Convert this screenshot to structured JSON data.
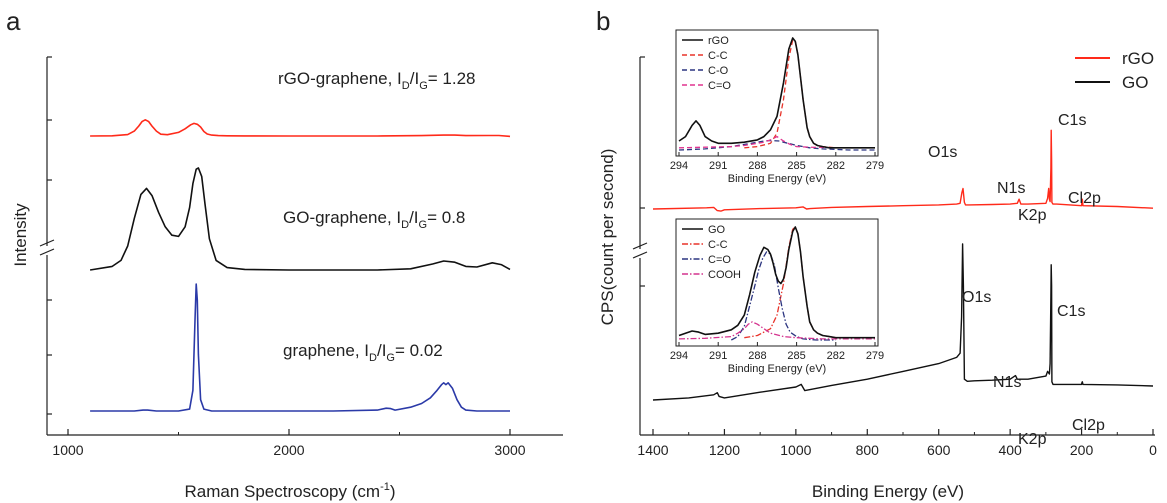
{
  "panels": {
    "a": {
      "letter": "a"
    },
    "b": {
      "letter": "b"
    }
  },
  "chart_data": [
    {
      "id": "raman",
      "type": "line",
      "title": "",
      "xlabel": "Raman Spectroscopy (cm",
      "xlabel_sup": "-1",
      "xlabel_close": ")",
      "ylabel": "Intensity",
      "xlim": [
        1000,
        3000
      ],
      "x_ticks": [
        1000,
        2000,
        3000
      ],
      "x_tick_labels": [
        "1000",
        "2000",
        "3000"
      ],
      "y_axis_break": true,
      "grid": false,
      "series": [
        {
          "name": "rGO-graphene",
          "color": "#ff2a1a",
          "annotation": {
            "prefix": "rGO-graphene, I",
            "sub1": "D",
            "mid": "/I",
            "sub2": "G",
            "suffix": "= 1.28"
          },
          "x": [
            1100,
            1200,
            1270,
            1300,
            1320,
            1335,
            1350,
            1365,
            1380,
            1400,
            1420,
            1450,
            1500,
            1530,
            1555,
            1570,
            1585,
            1600,
            1615,
            1630,
            1650,
            1680,
            1720,
            1800,
            2000,
            2200,
            2400,
            2600,
            2700,
            2750,
            2800,
            2900,
            2950,
            3000
          ],
          "y": [
            0,
            0.2,
            1.6,
            5.5,
            11,
            16,
            18,
            16,
            11,
            5.5,
            2,
            1.5,
            4,
            8,
            12.5,
            14,
            13,
            10,
            5,
            2.2,
            1,
            0.5,
            0.2,
            0.1,
            0,
            0,
            0,
            0.5,
            1,
            1,
            0.5,
            0.6,
            0.6,
            -0.5
          ]
        },
        {
          "name": "GO-graphene",
          "color": "#111111",
          "annotation": {
            "prefix": "GO-graphene, I",
            "sub1": "D",
            "mid": "/I",
            "sub2": "G",
            "suffix": "= 0.8"
          },
          "x": [
            1100,
            1200,
            1240,
            1270,
            1300,
            1330,
            1355,
            1380,
            1410,
            1440,
            1470,
            1500,
            1530,
            1550,
            1565,
            1580,
            1590,
            1605,
            1620,
            1640,
            1670,
            1720,
            1800,
            2000,
            2200,
            2400,
            2550,
            2650,
            2700,
            2750,
            2800,
            2850,
            2920,
            2960,
            3000
          ],
          "y": [
            0,
            3,
            8,
            20,
            43,
            63,
            68,
            62,
            48,
            36,
            29,
            28,
            36,
            52,
            72,
            84,
            85,
            78,
            55,
            26,
            8,
            2,
            0.5,
            0,
            0,
            0,
            1,
            5,
            7.5,
            6.5,
            3,
            2.5,
            6,
            4.5,
            0.5
          ]
        },
        {
          "name": "graphene",
          "color": "#2b3aa8",
          "annotation": {
            "prefix": "graphene, I",
            "sub1": "D",
            "mid": "/I",
            "sub2": "G",
            "suffix": "= 0.02"
          },
          "x": [
            1100,
            1300,
            1340,
            1360,
            1400,
            1500,
            1550,
            1565,
            1575,
            1580,
            1585,
            1590,
            1600,
            1615,
            1650,
            1800,
            2000,
            2200,
            2400,
            2440,
            2460,
            2480,
            2550,
            2600,
            2640,
            2670,
            2690,
            2700,
            2710,
            2720,
            2740,
            2760,
            2780,
            2800,
            2850,
            3000
          ],
          "y": [
            0,
            0,
            1,
            1,
            0,
            0,
            2,
            22,
            100,
            135,
            118,
            60,
            12,
            2,
            0,
            0,
            0,
            0,
            1,
            3,
            2.5,
            1,
            4,
            8,
            14,
            22,
            28,
            30,
            28,
            30,
            24,
            12,
            4,
            1,
            0,
            0
          ]
        }
      ]
    },
    {
      "id": "xps-survey",
      "type": "line",
      "title": "",
      "xlabel": "Binding Energy (eV)",
      "ylabel": "CPS(count per second)",
      "xlim": [
        1400,
        0
      ],
      "x_ticks": [
        1400,
        1200,
        1000,
        800,
        600,
        400,
        200,
        0
      ],
      "x_tick_labels": [
        "1400",
        "1200",
        "1000",
        "800",
        "600",
        "400",
        "200",
        "0"
      ],
      "y_axis_break": true,
      "grid": false,
      "legend": {
        "placement": "top-right",
        "entries": [
          {
            "label": "rGO",
            "color": "#ff2a1a"
          },
          {
            "label": "GO",
            "color": "#111111"
          }
        ]
      },
      "series": [
        {
          "name": "rGO",
          "color": "#ff2a1a",
          "x": [
            1400,
            1250,
            1230,
            1220,
            1210,
            1200,
            1100,
            1000,
            980,
            970,
            960,
            900,
            800,
            700,
            600,
            550,
            540,
            535,
            532,
            528,
            525,
            515,
            450,
            400,
            380,
            375,
            370,
            350,
            300,
            295,
            292,
            290,
            288,
            286,
            285,
            284,
            283,
            280,
            270,
            200,
            199,
            198,
            196,
            100,
            0
          ],
          "y": [
            0,
            1.5,
            2,
            -2,
            -2.5,
            -1,
            0.5,
            1.5,
            2.5,
            0,
            0.5,
            2,
            3,
            4,
            5,
            6,
            7,
            20,
            25,
            8,
            5,
            5,
            5.5,
            6,
            7,
            12,
            6,
            6,
            7,
            13,
            25,
            12,
            9,
            50,
            96,
            60,
            8,
            6,
            6,
            4,
            10,
            12,
            4,
            3,
            1
          ]
        },
        {
          "name": "GO",
          "color": "#111111",
          "x": [
            1400,
            1300,
            1230,
            1220,
            1215,
            1200,
            1100,
            1000,
            985,
            975,
            960,
            900,
            800,
            700,
            600,
            550,
            540,
            536,
            533,
            531,
            528,
            520,
            500,
            450,
            400,
            385,
            380,
            375,
            350,
            300,
            295,
            290,
            288,
            286,
            285,
            284,
            283,
            280,
            270,
            200,
            199,
            198,
            196,
            100,
            0
          ],
          "y": [
            0,
            4,
            10,
            14,
            7,
            4,
            15,
            25,
            30,
            18,
            20,
            28,
            40,
            55,
            70,
            82,
            90,
            160,
            300,
            220,
            40,
            36,
            37,
            38,
            40,
            47,
            40,
            40,
            40,
            46,
            55,
            50,
            70,
            200,
            260,
            220,
            35,
            30,
            30,
            30,
            33,
            35,
            30,
            29,
            27
          ]
        }
      ],
      "peak_labels": [
        {
          "text": "O1s",
          "series": "rGO"
        },
        {
          "text": "N1s",
          "series": "rGO"
        },
        {
          "text": "C1s",
          "series": "rGO"
        },
        {
          "text": "Cl2p",
          "series": "rGO"
        },
        {
          "text": "K2p",
          "series": "rGO"
        },
        {
          "text": "O1s",
          "series": "GO"
        },
        {
          "text": "N1s",
          "series": "GO"
        },
        {
          "text": "C1s",
          "series": "GO"
        },
        {
          "text": "Cl2p",
          "series": "GO"
        },
        {
          "text": "K2p",
          "series": "GO"
        }
      ]
    },
    {
      "id": "xps-c1s-rgo",
      "type": "line",
      "title": "",
      "xlabel": "Binding Energy (eV)",
      "xlim": [
        294,
        279
      ],
      "x_ticks": [
        294,
        291,
        288,
        285,
        282,
        279
      ],
      "x_tick_labels": [
        "294",
        "291",
        "288",
        "285",
        "282",
        "279"
      ],
      "legend": {
        "placement": "top-left"
      },
      "series": [
        {
          "name": "rGO",
          "color": "#111111",
          "style": "solid",
          "x": [
            294,
            293.5,
            293,
            292.7,
            292.4,
            292,
            291.5,
            291,
            290,
            289,
            288,
            287.5,
            287,
            286.5,
            286,
            285.6,
            285.3,
            285.1,
            284.9,
            284.7,
            284.5,
            284.2,
            284,
            283.7,
            283.4,
            283,
            282.5,
            282,
            281,
            280,
            279
          ],
          "y": [
            8,
            12,
            22,
            26,
            22,
            12,
            8,
            6,
            6,
            7,
            9,
            12,
            18,
            30,
            60,
            90,
            100,
            97,
            85,
            65,
            45,
            20,
            12,
            6,
            4,
            3,
            2,
            2,
            2,
            2,
            2
          ]
        },
        {
          "name": "C-C",
          "color": "#e8332a",
          "style": "dashed",
          "x": [
            289,
            288,
            287,
            286.5,
            286,
            285.6,
            285.3,
            285.1,
            284.9,
            284.7,
            284.5,
            284.2,
            284,
            283.7,
            283.4,
            283,
            282,
            279
          ],
          "y": [
            2,
            3,
            6,
            15,
            45,
            82,
            98,
            97,
            85,
            65,
            45,
            20,
            12,
            6,
            4,
            3,
            2,
            2
          ]
        },
        {
          "name": "C-O",
          "color": "#2c3580",
          "style": "dashed",
          "x": [
            294,
            292,
            290,
            289,
            288.2,
            287.5,
            287,
            286.3,
            286,
            285.5,
            285,
            284.5,
            284,
            283,
            282,
            281,
            279
          ],
          "y": [
            0,
            1,
            3,
            5,
            6.5,
            8,
            8.5,
            8,
            7,
            5.5,
            4,
            3,
            2,
            1,
            0.5,
            0,
            0
          ]
        },
        {
          "name": "C=O",
          "color": "#e0338f",
          "style": "dashed",
          "x": [
            294,
            292,
            290,
            289,
            288.5,
            288,
            287.5,
            287,
            286.5,
            286,
            285.5,
            285,
            284,
            282,
            279
          ],
          "y": [
            2,
            2.5,
            3,
            4,
            5,
            6,
            7,
            9,
            12,
            8,
            5,
            3,
            2.5,
            2,
            2
          ]
        }
      ]
    },
    {
      "id": "xps-c1s-go",
      "type": "line",
      "title": "",
      "xlabel": "Binding Energy (eV)",
      "xlim": [
        294,
        279
      ],
      "x_ticks": [
        294,
        291,
        288,
        285,
        282,
        279
      ],
      "x_tick_labels": [
        "294",
        "291",
        "288",
        "285",
        "282",
        "279"
      ],
      "legend": {
        "placement": "top-left"
      },
      "series": [
        {
          "name": "GO",
          "color": "#111111",
          "style": "solid",
          "x": [
            294,
            293.5,
            293,
            292.5,
            292,
            291,
            290,
            289.5,
            289,
            288.6,
            288.2,
            287.8,
            287.5,
            287.2,
            287,
            286.8,
            286.6,
            286.4,
            286.2,
            286,
            285.8,
            285.6,
            285.3,
            285.1,
            284.9,
            284.7,
            284.5,
            284.2,
            284,
            283.7,
            283.4,
            283,
            282.5,
            282,
            281,
            279
          ],
          "y": [
            4,
            6,
            8,
            7,
            5,
            6,
            9,
            13,
            22,
            40,
            60,
            75,
            82,
            80,
            76,
            68,
            58,
            52,
            50,
            54,
            64,
            80,
            96,
            100,
            94,
            78,
            56,
            30,
            16,
            9,
            6,
            4,
            3,
            2,
            2,
            2
          ]
        },
        {
          "name": "C-C",
          "color": "#e8332a",
          "style": "dashdot",
          "x": [
            289,
            288,
            287,
            286.5,
            286,
            285.6,
            285.3,
            285.1,
            284.9,
            284.7,
            284.5,
            284.2,
            284,
            283.7,
            283.4,
            283,
            282,
            279
          ],
          "y": [
            2,
            4,
            10,
            22,
            50,
            82,
            98,
            100,
            94,
            78,
            56,
            30,
            16,
            9,
            6,
            4,
            2,
            2
          ]
        },
        {
          "name": "C=O",
          "color": "#2c3580",
          "style": "dashdot",
          "x": [
            290,
            289.5,
            289,
            288.6,
            288.2,
            287.9,
            287.6,
            287.3,
            287,
            286.7,
            286.4,
            286.1,
            285.8,
            285.5,
            285,
            284.5,
            283.5,
            282
          ],
          "y": [
            0,
            3,
            12,
            30,
            48,
            62,
            72,
            78,
            76,
            66,
            46,
            28,
            14,
            7,
            3,
            1,
            0,
            0
          ]
        },
        {
          "name": "COOH",
          "color": "#d4338e",
          "style": "dashdot",
          "x": [
            294,
            292,
            290,
            289.5,
            289,
            288.7,
            288.4,
            288,
            287.5,
            287,
            286,
            285,
            283,
            281,
            279
          ],
          "y": [
            1,
            1.5,
            3,
            6,
            10,
            14,
            16,
            14,
            10,
            6,
            3,
            2,
            1,
            1,
            1
          ]
        }
      ]
    }
  ]
}
